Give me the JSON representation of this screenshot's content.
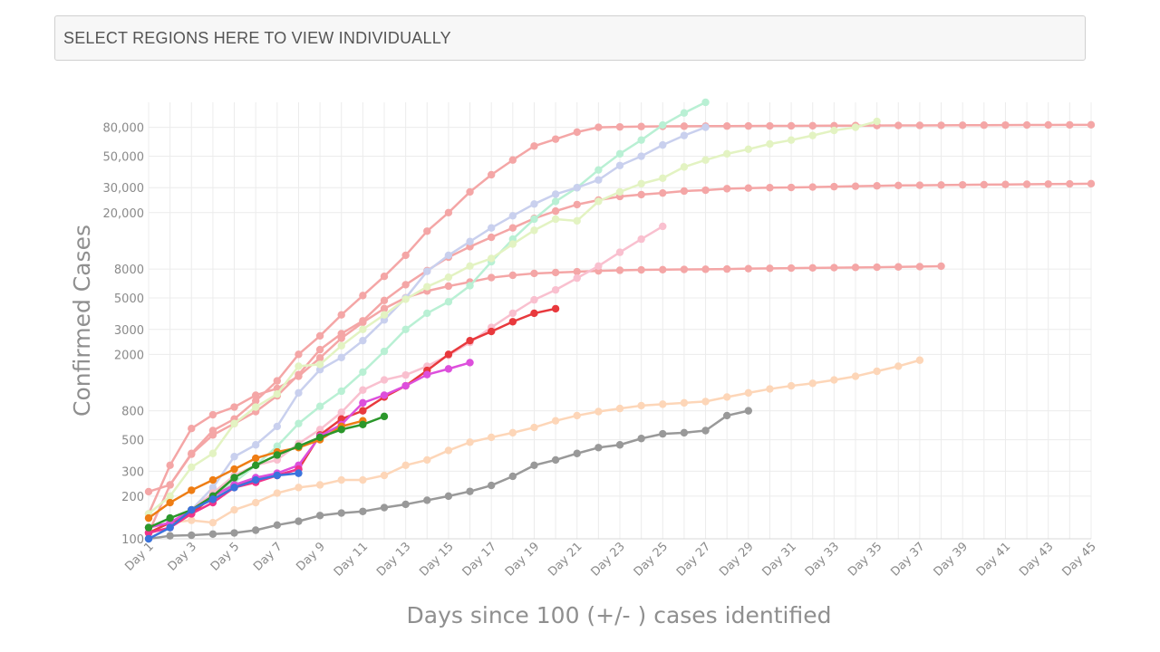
{
  "select_box": {
    "placeholder": "SELECT REGIONS HERE TO VIEW INDIVIDUALLY"
  },
  "chart_data": {
    "type": "line",
    "title": "",
    "xlabel": "Days since 100 (+/- ) cases identified",
    "ylabel": "Confirmed Cases",
    "y_scale": "log",
    "ylim": [
      100,
      120000
    ],
    "xlim": [
      1,
      45
    ],
    "grid": true,
    "x_tick_labels": [
      "Day 1",
      "Day 3",
      "Day 5",
      "Day 7",
      "Day 9",
      "Day 11",
      "Day 13",
      "Day 15",
      "Day 17",
      "Day 19",
      "Day 21",
      "Day 23",
      "Day 25",
      "Day 27",
      "Day 29",
      "Day 31",
      "Day 33",
      "Day 35",
      "Day 37",
      "Day 39",
      "Day 41",
      "Day 43",
      "Day 45"
    ],
    "y_tick_values": [
      100,
      200,
      300,
      500,
      800,
      2000,
      3000,
      5000,
      8000,
      20000,
      30000,
      50000,
      80000
    ],
    "y_tick_labels": [
      "100",
      "200",
      "300",
      "500",
      "800",
      "2000",
      "3000",
      "5000",
      "8000",
      "20,000",
      "30,000",
      "50,000",
      "80,000"
    ],
    "series": [
      {
        "color": "#f4a6a6",
        "y": [
          215,
          240,
          395,
          540,
          650,
          790,
          1020,
          1440,
          2160,
          2800,
          3450,
          4800,
          6200,
          7800,
          9700,
          11500,
          13400,
          15600,
          18200,
          20500,
          22800,
          24500,
          26000,
          26800,
          27500,
          28400,
          28800,
          29500,
          29800,
          30000,
          30100,
          30300,
          30500,
          30700,
          30900,
          31100,
          31200,
          31300,
          31400,
          31500,
          31600,
          31700,
          31800,
          31900,
          32000
        ]
      },
      {
        "color": "#f4a6a6",
        "y": [
          150,
          330,
          600,
          750,
          850,
          1030,
          1150,
          1400,
          1890,
          2600,
          3360,
          4210,
          5020,
          5600,
          6060,
          6480,
          6960,
          7230,
          7450,
          7560,
          7660,
          7760,
          7840,
          7890,
          7920,
          7950,
          7970,
          8000,
          8050,
          8090,
          8120,
          8150,
          8180,
          8210,
          8240,
          8280,
          8320,
          8380
        ]
      },
      {
        "color": "#f4a6a6",
        "y": [
          110,
          240,
          400,
          580,
          700,
          940,
          1300,
          2000,
          2700,
          3800,
          5200,
          7100,
          10000,
          14800,
          20000,
          28000,
          37000,
          47000,
          59000,
          66000,
          74000,
          80000,
          80500,
          81000,
          81200,
          81400,
          81500,
          81600,
          81700,
          81800,
          81900,
          82000,
          82100,
          82200,
          82300,
          82400,
          82500,
          82600,
          82700,
          82800,
          82900,
          83000,
          83100,
          83200,
          83300
        ]
      },
      {
        "color": "#b9f0d4",
        "y": [
          110,
          130,
          150,
          200,
          250,
          330,
          450,
          650,
          860,
          1100,
          1500,
          2100,
          3000,
          3900,
          4700,
          6100,
          9000,
          13000,
          18000,
          24000,
          30000,
          40000,
          52000,
          65000,
          83000,
          101000,
          120000
        ]
      },
      {
        "color": "#c9d0ee",
        "y": [
          110,
          130,
          160,
          230,
          380,
          460,
          620,
          1070,
          1560,
          1900,
          2500,
          3500,
          5000,
          7700,
          10000,
          12500,
          15600,
          19000,
          23000,
          27000,
          30000,
          34000,
          43000,
          50000,
          60000,
          70000,
          80000
        ]
      },
      {
        "color": "#e3f3c2",
        "y": [
          150,
          200,
          320,
          400,
          650,
          850,
          1050,
          1650,
          1700,
          2300,
          3000,
          3800,
          4900,
          6000,
          7000,
          8400,
          9500,
          12000,
          15000,
          18000,
          17500,
          24000,
          28000,
          32000,
          35000,
          42000,
          47000,
          52000,
          56000,
          61000,
          65000,
          70000,
          76000,
          80000,
          88000
        ]
      },
      {
        "color": "#f9c0cf",
        "y": [
          110,
          130,
          160,
          210,
          280,
          330,
          360,
          470,
          590,
          780,
          1120,
          1320,
          1430,
          1650,
          1970,
          2430,
          3100,
          3900,
          4850,
          5700,
          6900,
          8400,
          10500,
          13000,
          16000
        ]
      },
      {
        "color": "#fdd6b8",
        "y": [
          120,
          130,
          135,
          130,
          160,
          180,
          210,
          230,
          240,
          260,
          260,
          280,
          330,
          360,
          420,
          480,
          520,
          560,
          610,
          680,
          740,
          790,
          830,
          870,
          890,
          910,
          930,
          1000,
          1070,
          1140,
          1200,
          1250,
          1320,
          1400,
          1520,
          1650,
          1820
        ]
      },
      {
        "color": "#999999",
        "y": [
          100,
          105,
          106,
          108,
          110,
          115,
          125,
          133,
          146,
          152,
          156,
          166,
          175,
          187,
          200,
          216,
          238,
          276,
          330,
          360,
          400,
          440,
          460,
          510,
          550,
          560,
          580,
          740,
          800
        ]
      },
      {
        "color": "#e8393d",
        "y": [
          110,
          130,
          150,
          200,
          240,
          260,
          280,
          310,
          540,
          700,
          800,
          1000,
          1200,
          1540,
          2000,
          2500,
          2900,
          3400,
          3900,
          4200
        ]
      },
      {
        "color": "#dd4fdc",
        "y": [
          120,
          130,
          160,
          200,
          240,
          270,
          290,
          330,
          530,
          640,
          910,
          1030,
          1200,
          1440,
          1580,
          1750
        ]
      },
      {
        "color": "#f0348c",
        "y": [
          110,
          120,
          150,
          180,
          230,
          250,
          280,
          310
        ]
      },
      {
        "color": "#ee7d14",
        "y": [
          140,
          180,
          220,
          260,
          310,
          370,
          410,
          440,
          500,
          620,
          680
        ]
      },
      {
        "color": "#2b972b",
        "y": [
          120,
          140,
          160,
          200,
          270,
          330,
          390,
          450,
          520,
          590,
          640,
          730
        ]
      },
      {
        "color": "#3a73dd",
        "y": [
          100,
          120,
          160,
          190,
          230,
          260,
          280,
          290
        ]
      }
    ]
  }
}
